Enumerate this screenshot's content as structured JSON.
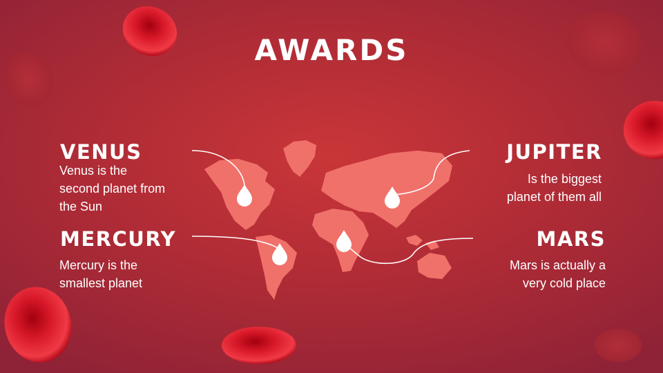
{
  "slide": {
    "title": "AWARDS",
    "planets": [
      {
        "name": "VENUS",
        "description_lines": [
          "Venus is the",
          "second planet from",
          "the Sun"
        ]
      },
      {
        "name": "MERCURY",
        "description_lines": [
          "Mercury is the",
          "smallest planet"
        ]
      },
      {
        "name": "JUPITER",
        "description_lines": [
          "Is the biggest",
          "planet of them all"
        ]
      },
      {
        "name": "MARS",
        "description_lines": [
          "Mars is actually a",
          "very cold place"
        ]
      }
    ]
  },
  "colors": {
    "background": "#b12c36",
    "map_fill": "#f0716a",
    "blood_cell": "#d51527",
    "text": "#ffffff"
  },
  "icons": [
    "blood-drop-icon",
    "red-blood-cell-decoration",
    "world-map"
  ]
}
